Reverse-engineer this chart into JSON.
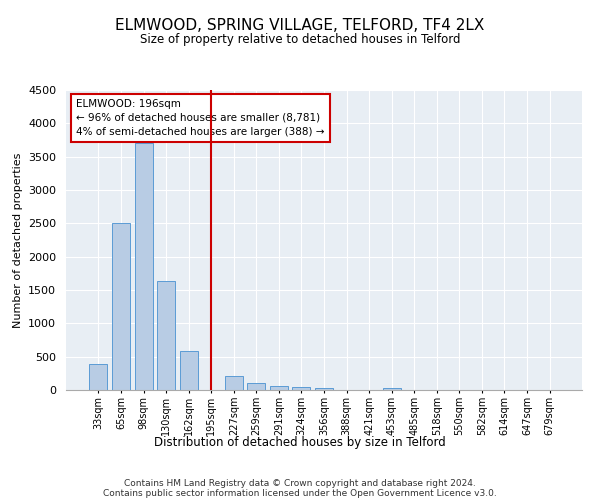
{
  "title": "ELMWOOD, SPRING VILLAGE, TELFORD, TF4 2LX",
  "subtitle": "Size of property relative to detached houses in Telford",
  "xlabel": "Distribution of detached houses by size in Telford",
  "ylabel": "Number of detached properties",
  "bar_color": "#b8cce4",
  "bar_edge_color": "#5b9bd5",
  "background_color": "#e8eef4",
  "categories": [
    "33sqm",
    "65sqm",
    "98sqm",
    "130sqm",
    "162sqm",
    "195sqm",
    "227sqm",
    "259sqm",
    "291sqm",
    "324sqm",
    "356sqm",
    "388sqm",
    "421sqm",
    "453sqm",
    "485sqm",
    "518sqm",
    "550sqm",
    "582sqm",
    "614sqm",
    "647sqm",
    "679sqm"
  ],
  "values": [
    390,
    2500,
    3700,
    1630,
    580,
    0,
    210,
    110,
    60,
    50,
    30,
    0,
    0,
    35,
    0,
    0,
    0,
    0,
    0,
    0,
    0
  ],
  "ylim": [
    0,
    4500
  ],
  "yticks": [
    0,
    500,
    1000,
    1500,
    2000,
    2500,
    3000,
    3500,
    4000,
    4500
  ],
  "annotation_box_text": "ELMWOOD: 196sqm\n← 96% of detached houses are smaller (8,781)\n4% of semi-detached houses are larger (388) →",
  "footer_line1": "Contains HM Land Registry data © Crown copyright and database right 2024.",
  "footer_line2": "Contains public sector information licensed under the Open Government Licence v3.0.",
  "red_line_color": "#cc0000",
  "annotation_box_edge_color": "#cc0000"
}
